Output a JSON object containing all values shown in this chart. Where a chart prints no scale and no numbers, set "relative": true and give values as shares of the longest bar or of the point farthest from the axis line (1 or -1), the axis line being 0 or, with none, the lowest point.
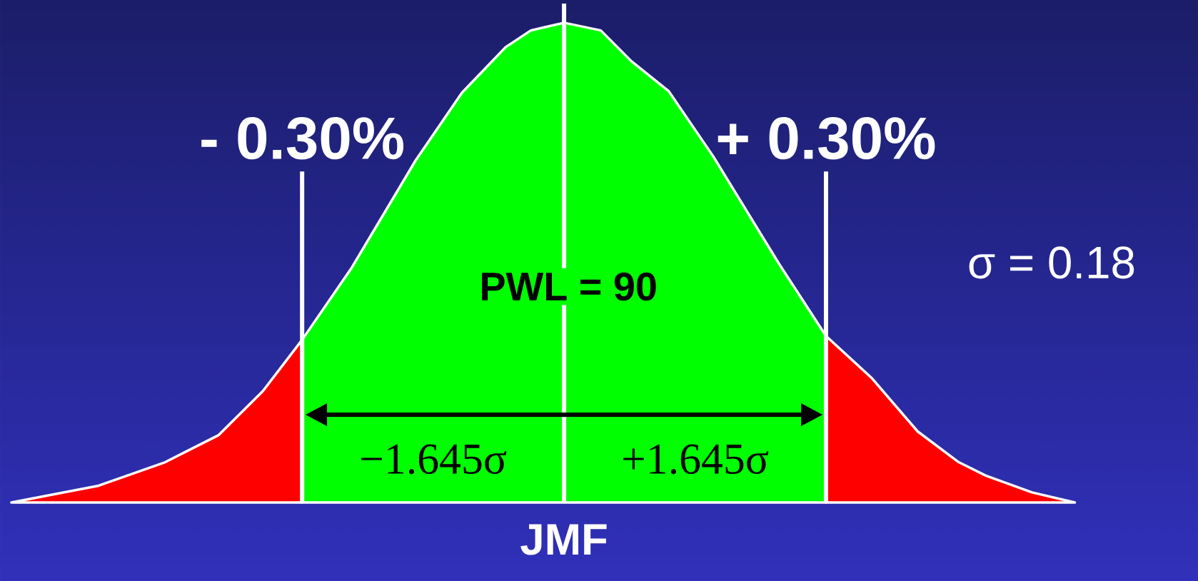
{
  "chart_data": {
    "type": "area",
    "relative": true,
    "xlim": [
      -0.646,
      0.726
    ],
    "xticks": [
      {
        "value": -0.3,
        "label": "- 0.30%"
      },
      {
        "value": 0.3,
        "label": "+ 0.30%"
      }
    ],
    "series": [
      {
        "color": "#ff0000",
        "x": [
          -0.633,
          -0.533,
          -0.458,
          -0.396,
          -0.345,
          -0.3
        ],
        "values": [
          0,
          0.035,
          0.083,
          0.14,
          0.232,
          0.339
        ]
      },
      {
        "color": "#00ff00",
        "x": [
          -0.3,
          -0.243,
          -0.17,
          -0.117,
          -0.067,
          -0.038,
          0,
          0.042,
          0.077,
          0.12,
          0.171,
          0.246,
          0.3
        ],
        "values": [
          0.339,
          0.49,
          0.713,
          0.854,
          0.949,
          0.984,
          1,
          0.984,
          0.92,
          0.857,
          0.721,
          0.498,
          0.347
        ]
      },
      {
        "color": "#ff0000",
        "x": [
          0.3,
          0.352,
          0.405,
          0.452,
          0.483,
          0.536,
          0.585
        ],
        "values": [
          0.347,
          0.26,
          0.148,
          0.084,
          0.056,
          0.021,
          0
        ]
      }
    ],
    "ref_lines": [
      {
        "axis": "x",
        "value": -0.3,
        "color": "#ffffff"
      },
      {
        "axis": "x",
        "value": 0,
        "label": "JMF",
        "color": "#ffffff"
      },
      {
        "axis": "x",
        "value": 0.3,
        "color": "#ffffff"
      }
    ],
    "annotations": [
      "PWL = 90",
      "σ = 0.18",
      "−1.645σ",
      "+1.645σ"
    ]
  }
}
